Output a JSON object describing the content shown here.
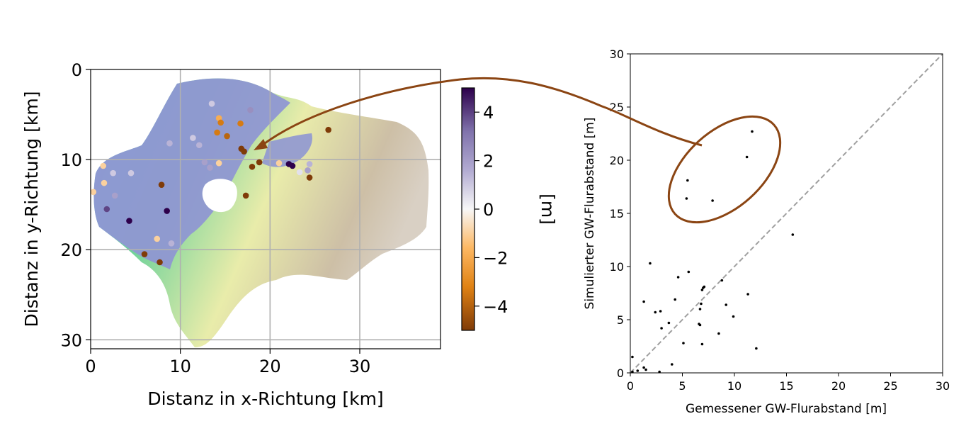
{
  "chart_data": [
    {
      "type": "heatmap",
      "title": "",
      "xlabel": "Distanz in x-Richtung [km]",
      "ylabel": "Distanz in y-Richtung [km]",
      "xlim": [
        0,
        39
      ],
      "ylim": [
        31,
        0
      ],
      "xticks": [
        "0",
        "10",
        "20",
        "30"
      ],
      "yticks": [
        "0",
        "10",
        "20",
        "30"
      ],
      "grid": true,
      "colorbar": {
        "label": "[m]",
        "range": [
          -5,
          5
        ],
        "ticks": [
          "4",
          "2",
          "0",
          "−2",
          "−4"
        ],
        "colors": [
          "#7f3b08",
          "#e08214",
          "#fdb863",
          "#f7f7f7",
          "#b2abd2",
          "#8073ac",
          "#2d004b"
        ]
      },
      "points": [
        {
          "x": 13.5,
          "y": 3.8,
          "v": 1
        },
        {
          "x": 17.8,
          "y": 4.5,
          "v": 2.5
        },
        {
          "x": 14.3,
          "y": 5.4,
          "v": -2
        },
        {
          "x": 14.5,
          "y": 5.9,
          "v": -3.5
        },
        {
          "x": 16.7,
          "y": 6.0,
          "v": -3.5
        },
        {
          "x": 14.1,
          "y": 7.0,
          "v": -3.5
        },
        {
          "x": 15.2,
          "y": 7.4,
          "v": -4
        },
        {
          "x": 11.4,
          "y": 7.6,
          "v": 1
        },
        {
          "x": 12.1,
          "y": 8.4,
          "v": 1.5
        },
        {
          "x": 8.8,
          "y": 8.2,
          "v": 1.5
        },
        {
          "x": 16.8,
          "y": 8.8,
          "v": -5
        },
        {
          "x": 17.1,
          "y": 9.1,
          "v": -5
        },
        {
          "x": 26.5,
          "y": 6.7,
          "v": -5
        },
        {
          "x": 12.7,
          "y": 10.3,
          "v": 2
        },
        {
          "x": 13.3,
          "y": 10.9,
          "v": 2
        },
        {
          "x": 14.3,
          "y": 10.4,
          "v": -1
        },
        {
          "x": 18.8,
          "y": 10.3,
          "v": -5
        },
        {
          "x": 18.0,
          "y": 10.8,
          "v": -5
        },
        {
          "x": 21.0,
          "y": 10.4,
          "v": -1
        },
        {
          "x": 22.1,
          "y": 10.5,
          "v": 5
        },
        {
          "x": 22.5,
          "y": 10.7,
          "v": 5
        },
        {
          "x": 24.4,
          "y": 10.5,
          "v": 1.5
        },
        {
          "x": 24.2,
          "y": 11.2,
          "v": 2
        },
        {
          "x": 23.3,
          "y": 11.4,
          "v": 0.5
        },
        {
          "x": 24.4,
          "y": 12.0,
          "v": -5
        },
        {
          "x": 1.4,
          "y": 10.7,
          "v": -1
        },
        {
          "x": 2.5,
          "y": 11.5,
          "v": 1
        },
        {
          "x": 4.5,
          "y": 11.5,
          "v": 1
        },
        {
          "x": 1.5,
          "y": 12.6,
          "v": -1
        },
        {
          "x": 7.9,
          "y": 12.8,
          "v": -5
        },
        {
          "x": 0.3,
          "y": 13.6,
          "v": -1
        },
        {
          "x": 2.7,
          "y": 14.0,
          "v": 2
        },
        {
          "x": 17.3,
          "y": 14.0,
          "v": -5
        },
        {
          "x": 1.8,
          "y": 15.5,
          "v": 4
        },
        {
          "x": 8.5,
          "y": 15.7,
          "v": 5
        },
        {
          "x": 4.3,
          "y": 16.8,
          "v": 5
        },
        {
          "x": 7.4,
          "y": 18.8,
          "v": -1
        },
        {
          "x": 9.0,
          "y": 19.3,
          "v": 1.5
        },
        {
          "x": 6.0,
          "y": 20.5,
          "v": -5
        },
        {
          "x": 7.7,
          "y": 21.4,
          "v": -5
        }
      ]
    },
    {
      "type": "scatter",
      "title": "",
      "xlabel": "Gemessener GW-Flurabstand [m]",
      "ylabel": "Simulierter GW-Flurabstand [m]",
      "xlim": [
        0,
        30
      ],
      "ylim": [
        0,
        30
      ],
      "xticks": [
        "0",
        "5",
        "10",
        "15",
        "20",
        "25",
        "30"
      ],
      "yticks": [
        "0",
        "5",
        "10",
        "15",
        "20",
        "25",
        "30"
      ],
      "reference_line": "y = x",
      "points": [
        {
          "x": 11.7,
          "y": 22.7
        },
        {
          "x": 11.2,
          "y": 20.3
        },
        {
          "x": 5.5,
          "y": 18.1
        },
        {
          "x": 5.4,
          "y": 16.4
        },
        {
          "x": 7.9,
          "y": 16.2
        },
        {
          "x": 15.6,
          "y": 13.0
        },
        {
          "x": 1.9,
          "y": 10.3
        },
        {
          "x": 5.6,
          "y": 9.5
        },
        {
          "x": 4.6,
          "y": 9.0
        },
        {
          "x": 8.8,
          "y": 8.7
        },
        {
          "x": 7.0,
          "y": 8.0
        },
        {
          "x": 7.1,
          "y": 8.1
        },
        {
          "x": 6.9,
          "y": 7.8
        },
        {
          "x": 11.3,
          "y": 7.4
        },
        {
          "x": 4.3,
          "y": 6.9
        },
        {
          "x": 1.3,
          "y": 6.7
        },
        {
          "x": 6.8,
          "y": 6.5
        },
        {
          "x": 9.2,
          "y": 6.4
        },
        {
          "x": 6.7,
          "y": 6.0
        },
        {
          "x": 2.9,
          "y": 5.8
        },
        {
          "x": 2.4,
          "y": 5.7
        },
        {
          "x": 9.9,
          "y": 5.3
        },
        {
          "x": 3.7,
          "y": 4.7
        },
        {
          "x": 6.6,
          "y": 4.6
        },
        {
          "x": 6.7,
          "y": 4.5
        },
        {
          "x": 3.0,
          "y": 4.2
        },
        {
          "x": 8.5,
          "y": 3.7
        },
        {
          "x": 5.1,
          "y": 2.8
        },
        {
          "x": 6.9,
          "y": 2.7
        },
        {
          "x": 12.1,
          "y": 2.3
        },
        {
          "x": 0.2,
          "y": 1.5
        },
        {
          "x": 4.0,
          "y": 0.8
        },
        {
          "x": 1.3,
          "y": 0.5
        },
        {
          "x": 1.5,
          "y": 0.3
        },
        {
          "x": 0.7,
          "y": 0.2
        },
        {
          "x": 2.8,
          "y": 0.1
        },
        {
          "x": 0.2,
          "y": 0.1
        }
      ]
    }
  ]
}
